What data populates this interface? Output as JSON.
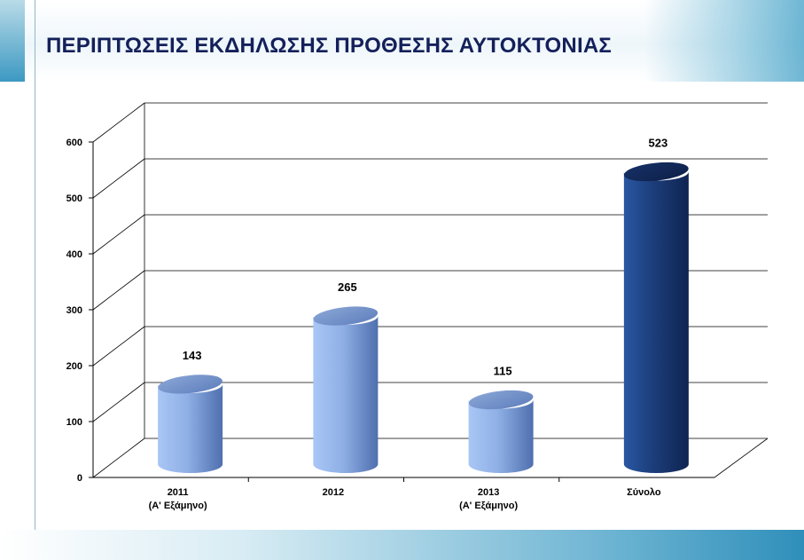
{
  "slide": {
    "title": "ΠΕΡΙΠΤΩΣΕΙΣ ΕΚΔΗΛΩΣΗΣ ΠΡΟΘΕΣΗΣ ΑΥΤΟΚΤΟΝΙΑΣ"
  },
  "chart_data": {
    "type": "bar",
    "style": "3d-cylinder",
    "title": "ΠΕΡΙΠΤΩΣΕΙΣ ΕΚΔΗΛΩΣΗΣ ΠΡΟΘΕΣΗΣ ΑΥΤΟΚΤΟΝΙΑΣ",
    "xlabel": "",
    "ylabel": "",
    "categories": [
      [
        "2011",
        "(Α' Εξάμηνο)"
      ],
      [
        "2012"
      ],
      [
        "2013",
        "(Α' Εξάμηνο)"
      ],
      [
        "Σύνολο"
      ]
    ],
    "values": [
      143,
      265,
      115,
      523
    ],
    "data_labels": [
      "143",
      "265",
      "115",
      "523"
    ],
    "ylim": [
      0,
      600
    ],
    "yticks": [
      "0",
      "100",
      "200",
      "300",
      "400",
      "500",
      "600"
    ],
    "grid": true,
    "legend": "none",
    "colors": {
      "bar_light": "#8fb0e6",
      "bar_dark": "#1c3d7a",
      "grid": "#000000"
    }
  }
}
